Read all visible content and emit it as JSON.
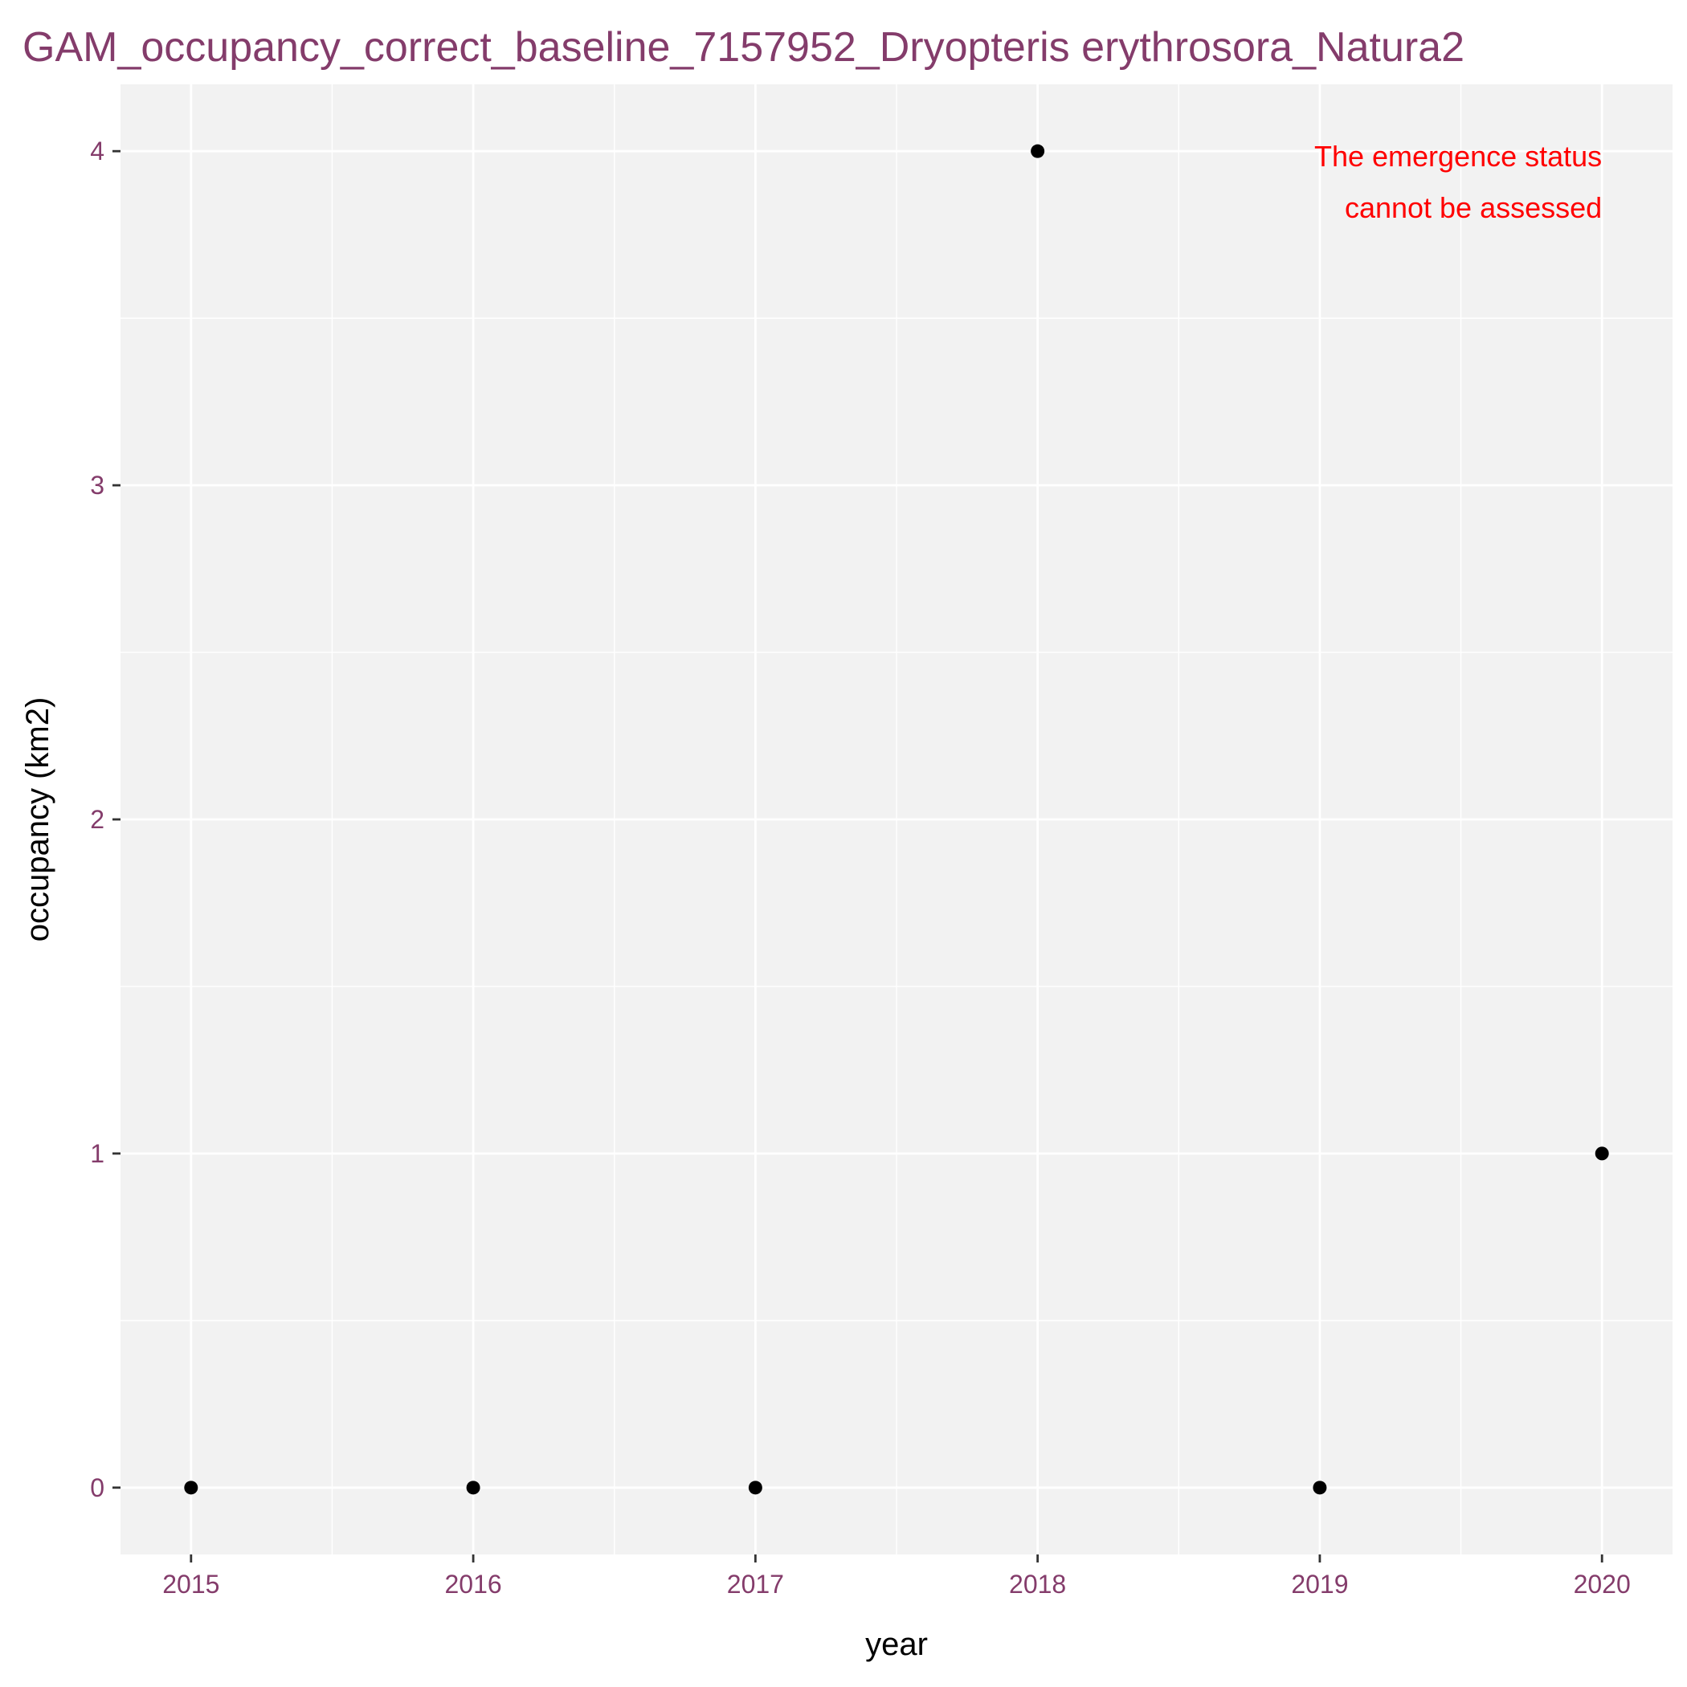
{
  "chart_data": {
    "type": "scatter",
    "title": "GAM_occupancy_correct_baseline_7157952_Dryopteris erythrosora_Natura2",
    "xlabel": "year",
    "ylabel": "occupancy (km2)",
    "x": [
      2015,
      2016,
      2017,
      2018,
      2019,
      2020
    ],
    "y": [
      0,
      0,
      0,
      4,
      0,
      1
    ],
    "xlim": [
      2014.75,
      2020.25
    ],
    "ylim": [
      -0.2,
      4.2
    ],
    "x_ticks": [
      "2015",
      "2016",
      "2017",
      "2018",
      "2019",
      "2020"
    ],
    "y_ticks": [
      "0",
      "1",
      "2",
      "3",
      "4"
    ],
    "grid": true,
    "legend": "none",
    "annotation": {
      "lines": [
        "The emergence status",
        "cannot be assessed"
      ],
      "color": "#ff0000"
    },
    "colors": {
      "panel": "#f2f2f2",
      "grid": "#ffffff",
      "point": "#000000",
      "title": "#843c6b",
      "tick_label": "#843c6b"
    }
  }
}
